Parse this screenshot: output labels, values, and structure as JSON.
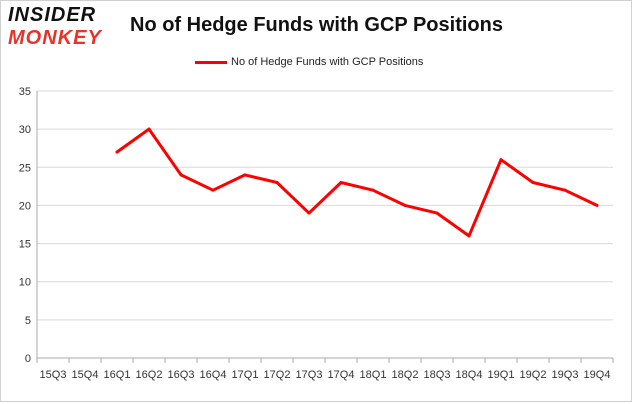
{
  "logo": {
    "line1": "INSIDER",
    "line2": "MONKEY"
  },
  "colors": {
    "series": "#ff0000",
    "grid": "#d9d9d9",
    "axis": "#aaaaaa",
    "logo_accent": "#e8332a"
  },
  "chart_data": {
    "type": "line",
    "title": "No of Hedge Funds with GCP Positions",
    "xlabel": "",
    "ylabel": "",
    "ylim": [
      0,
      35
    ],
    "yticks": [
      0,
      5,
      10,
      15,
      20,
      25,
      30,
      35
    ],
    "grid": true,
    "legend_position": "top-center",
    "categories": [
      "15Q3",
      "15Q4",
      "16Q1",
      "16Q2",
      "16Q3",
      "16Q4",
      "17Q1",
      "17Q2",
      "17Q3",
      "17Q4",
      "18Q1",
      "18Q2",
      "18Q3",
      "18Q4",
      "19Q1",
      "19Q2",
      "19Q3",
      "19Q4"
    ],
    "series": [
      {
        "name": "No of Hedge Funds with GCP Positions",
        "values": [
          null,
          null,
          27,
          30,
          24,
          22,
          24,
          23,
          19,
          23,
          22,
          20,
          19,
          16,
          26,
          23,
          22,
          20
        ]
      }
    ]
  }
}
